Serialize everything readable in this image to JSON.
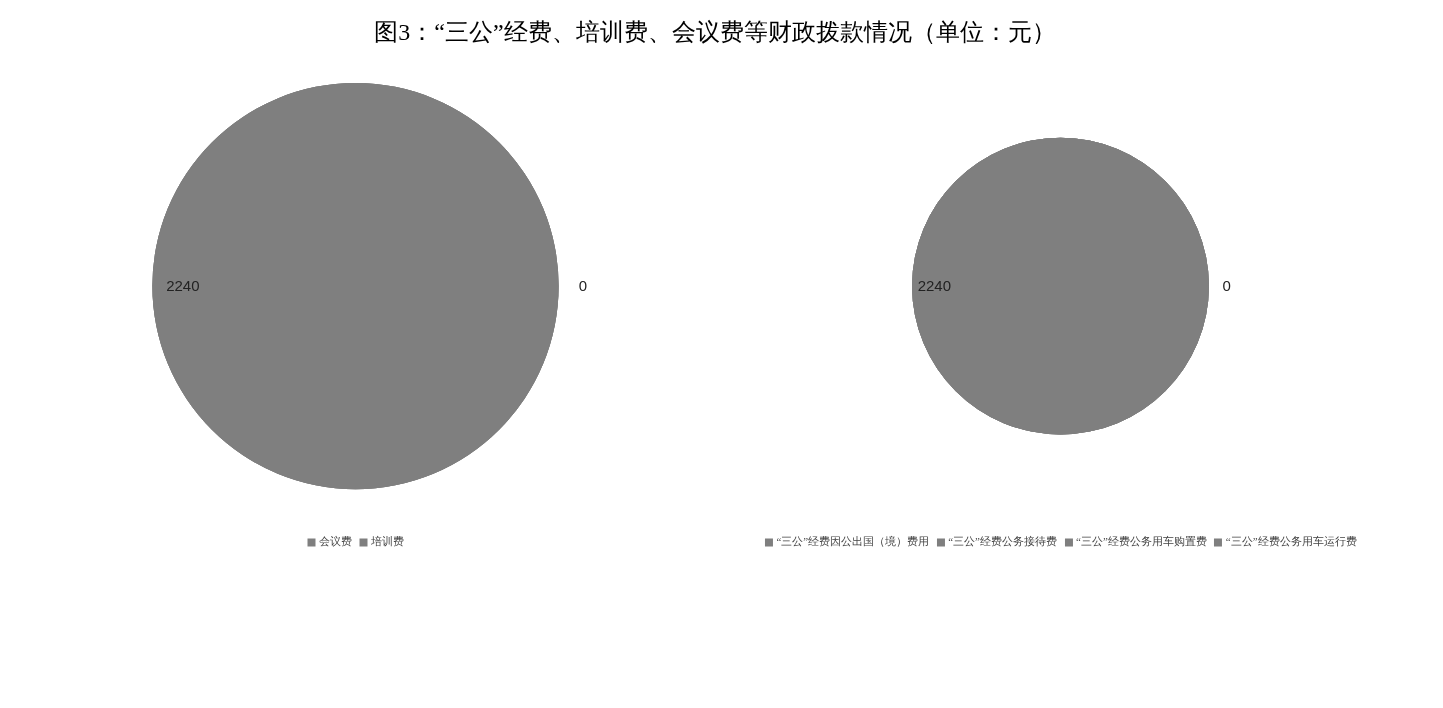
{
  "chart_data": [
    {
      "type": "pie",
      "title": "图3：“三公”经费、培训费、会议费等财政拨款情况（单位：元）",
      "categories": [
        "会议费",
        "培训费",
        null
      ],
      "values": [
        0,
        0,
        2240
      ],
      "colors": [
        "#7f7f7f",
        "#7f7f7f",
        "#7f7f7f"
      ],
      "value_labels": [
        "0",
        null,
        "2240"
      ],
      "legend": "bottom"
    },
    {
      "type": "pie",
      "categories": [
        "“三公”经费因公出国（境）费用",
        "“三公”经费公务接待费",
        "“三公”经费公务用车购置费",
        "“三公”经费公务用车运行费"
      ],
      "values": [
        0,
        0,
        0,
        2240
      ],
      "colors": [
        "#7f7f7f",
        "#7f7f7f",
        "#7f7f7f",
        "#7f7f7f"
      ],
      "value_labels": [
        null,
        null,
        "0",
        "2240"
      ],
      "legend": "bottom"
    }
  ]
}
